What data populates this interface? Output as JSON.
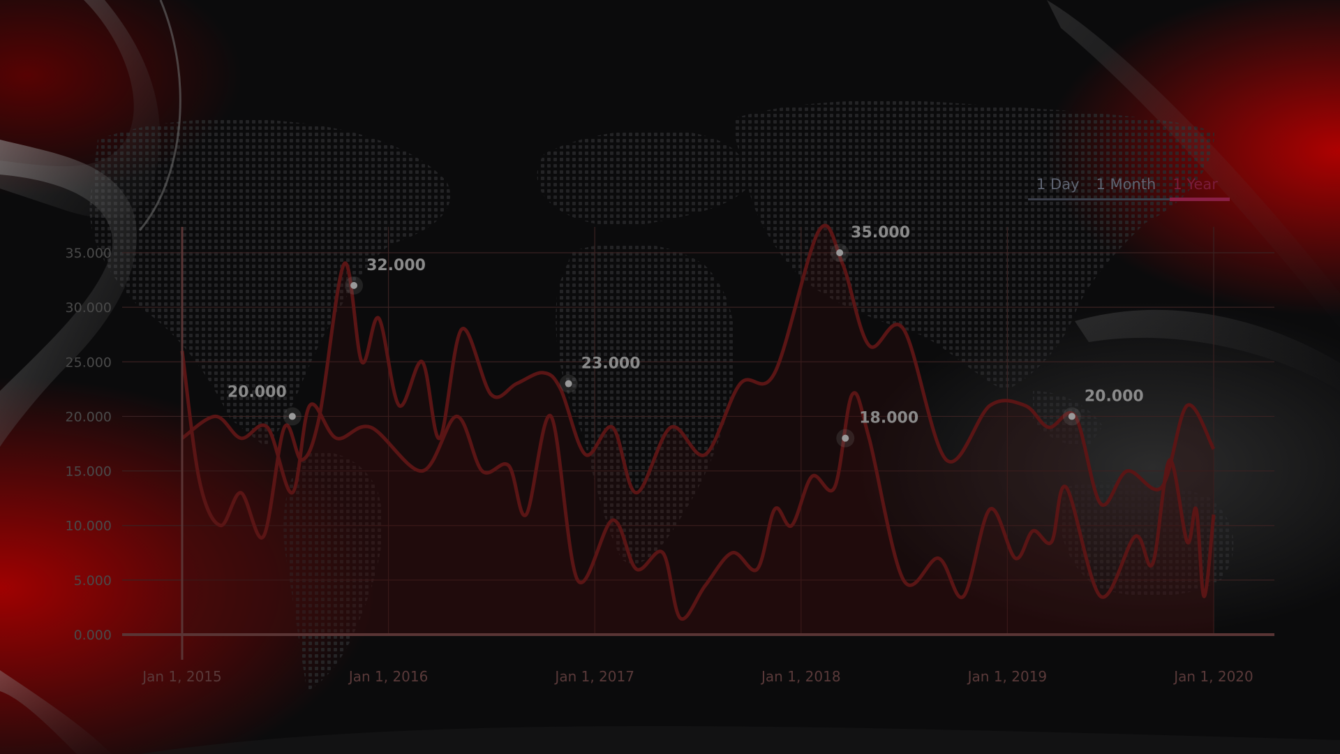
{
  "tabs": [
    {
      "label": "1 Day",
      "active": false
    },
    {
      "label": "1 Month",
      "active": false
    },
    {
      "label": "1 Year",
      "active": true
    }
  ],
  "colors": {
    "background": "#0b0b0c",
    "grid": "#3a2222",
    "line": "#5a1515",
    "area": "#3a1010",
    "label": "#5a3a3a",
    "tick_label": "#4a4a4a",
    "marker_label": "#8a8a8a",
    "accent_red": "#c00000",
    "tab_inactive": "#5f6573",
    "tab_active": "#7a1c3a"
  },
  "chart_data": {
    "type": "area",
    "title": "",
    "xlabel": "",
    "ylabel": "",
    "ylim": [
      0,
      35000
    ],
    "xlim": [
      "2015-01-01",
      "2020-01-01"
    ],
    "grid": true,
    "x_ticks": [
      "Jan 1, 2015",
      "Jan 1, 2016",
      "Jan 1, 2017",
      "Jan 1, 2018",
      "Jan 1, 2019",
      "Jan 1, 2020"
    ],
    "y_ticks": [
      "0.000",
      "5.000",
      "10.000",
      "15.000",
      "20.000",
      "25.000",
      "30.000",
      "35.000"
    ],
    "series": [
      {
        "values": [
          [
            "2015-01-01",
            26000
          ],
          [
            "2015-02-01",
            14000
          ],
          [
            "2015-03-10",
            10000
          ],
          [
            "2015-04-15",
            13000
          ],
          [
            "2015-05-25",
            9000
          ],
          [
            "2015-07-01",
            19000
          ],
          [
            "2015-08-01",
            16000
          ],
          [
            "2015-09-01",
            20000
          ],
          [
            "2015-10-15",
            34000
          ],
          [
            "2015-11-15",
            25000
          ],
          [
            "2015-12-15",
            29000
          ],
          [
            "2016-01-20",
            21000
          ],
          [
            "2016-03-01",
            25000
          ],
          [
            "2016-04-01",
            18000
          ],
          [
            "2016-05-10",
            28000
          ],
          [
            "2016-07-01",
            22000
          ],
          [
            "2016-08-15",
            23000
          ],
          [
            "2016-10-01",
            24000
          ],
          [
            "2016-11-01",
            22500
          ],
          [
            "2016-12-15",
            16500
          ],
          [
            "2017-02-01",
            19000
          ],
          [
            "2017-03-15",
            13000
          ],
          [
            "2017-05-15",
            19000
          ],
          [
            "2017-07-15",
            16500
          ],
          [
            "2017-09-15",
            23000
          ],
          [
            "2017-11-15",
            24000
          ],
          [
            "2018-02-01",
            37000
          ],
          [
            "2018-03-15",
            34000
          ],
          [
            "2018-05-01",
            26500
          ],
          [
            "2018-07-01",
            28000
          ],
          [
            "2018-09-15",
            16000
          ],
          [
            "2018-12-01",
            21000
          ],
          [
            "2019-02-01",
            21000
          ],
          [
            "2019-03-15",
            19000
          ],
          [
            "2019-05-01",
            20000
          ],
          [
            "2019-06-15",
            12000
          ],
          [
            "2019-08-01",
            15000
          ],
          [
            "2019-10-01",
            13500
          ],
          [
            "2019-11-15",
            21000
          ],
          [
            "2020-01-01",
            17000
          ]
        ]
      },
      {
        "values": [
          [
            "2015-01-01",
            18000
          ],
          [
            "2015-03-01",
            20000
          ],
          [
            "2015-04-15",
            18000
          ],
          [
            "2015-06-01",
            19000
          ],
          [
            "2015-07-15",
            13000
          ],
          [
            "2015-08-15",
            21000
          ],
          [
            "2015-10-01",
            18000
          ],
          [
            "2015-12-01",
            19000
          ],
          [
            "2016-03-01",
            15000
          ],
          [
            "2016-05-01",
            20000
          ],
          [
            "2016-06-15",
            15000
          ],
          [
            "2016-08-01",
            15500
          ],
          [
            "2016-09-01",
            11000
          ],
          [
            "2016-10-15",
            20000
          ],
          [
            "2016-12-01",
            5000
          ],
          [
            "2017-02-01",
            10500
          ],
          [
            "2017-03-15",
            6000
          ],
          [
            "2017-05-01",
            7500
          ],
          [
            "2017-06-01",
            1500
          ],
          [
            "2017-07-15",
            4500
          ],
          [
            "2017-09-01",
            7500
          ],
          [
            "2017-10-15",
            6000
          ],
          [
            "2017-11-15",
            11500
          ],
          [
            "2017-12-15",
            10000
          ],
          [
            "2018-01-20",
            14500
          ],
          [
            "2018-03-01",
            13500
          ],
          [
            "2018-04-01",
            22000
          ],
          [
            "2018-05-01",
            18000
          ],
          [
            "2018-07-01",
            5000
          ],
          [
            "2018-09-01",
            7000
          ],
          [
            "2018-10-15",
            3500
          ],
          [
            "2018-12-01",
            11500
          ],
          [
            "2019-01-15",
            7000
          ],
          [
            "2019-02-15",
            9500
          ],
          [
            "2019-03-20",
            8500
          ],
          [
            "2019-04-15",
            13500
          ],
          [
            "2019-06-15",
            3500
          ],
          [
            "2019-08-15",
            9000
          ],
          [
            "2019-09-15",
            6500
          ],
          [
            "2019-10-15",
            16000
          ],
          [
            "2019-11-15",
            8500
          ],
          [
            "2019-12-01",
            11500
          ],
          [
            "2019-12-15",
            3500
          ],
          [
            "2020-01-01",
            11000
          ]
        ]
      }
    ],
    "markers": [
      {
        "x": "2015-07-15",
        "y": 20000,
        "label": "20.000"
      },
      {
        "x": "2015-11-01",
        "y": 32000,
        "label": "32.000"
      },
      {
        "x": "2016-11-15",
        "y": 23000,
        "label": "23.000"
      },
      {
        "x": "2018-03-10",
        "y": 35000,
        "label": "35.000"
      },
      {
        "x": "2018-03-20",
        "y": 18000,
        "label": "18.000"
      },
      {
        "x": "2019-04-25",
        "y": 20000,
        "label": "20.000"
      }
    ]
  }
}
